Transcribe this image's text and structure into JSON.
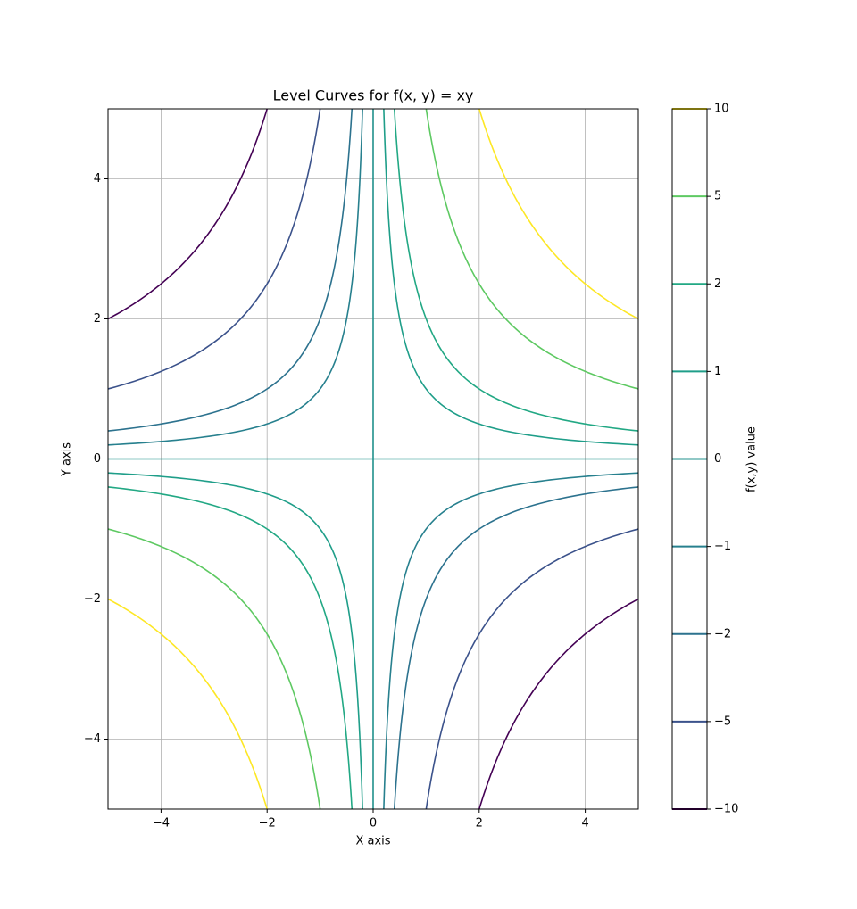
{
  "chart_data": {
    "type": "contour",
    "title": "Level Curves for f(x, y) = xy",
    "x_label": "X axis",
    "y_label": "Y axis",
    "xlim": [
      -5,
      5
    ],
    "ylim": [
      -5,
      5
    ],
    "xticks": [
      {
        "value": -4,
        "label": "−4"
      },
      {
        "value": -2,
        "label": "−2"
      },
      0,
      2,
      4
    ],
    "yticks": [
      {
        "value": -4,
        "label": "−4"
      },
      {
        "value": -2,
        "label": "−2"
      },
      0,
      2,
      4
    ],
    "grid": true,
    "levels": [
      -10,
      -5,
      -2,
      -1,
      0,
      1,
      2,
      5,
      10
    ],
    "colors": [
      "#440154",
      "#3b528b",
      "#2c728e",
      "#27808e",
      "#21918c",
      "#1f9e89",
      "#22a884",
      "#5ec962",
      "#fde725"
    ],
    "colorbar": {
      "label": "f(x,y) value",
      "ticks": [
        {
          "value": -10,
          "label": "−10"
        },
        {
          "value": -5,
          "label": "−5"
        },
        {
          "value": -2,
          "label": "−2"
        },
        {
          "value": -1,
          "label": "−1"
        },
        0,
        1,
        2,
        5,
        10
      ]
    }
  }
}
